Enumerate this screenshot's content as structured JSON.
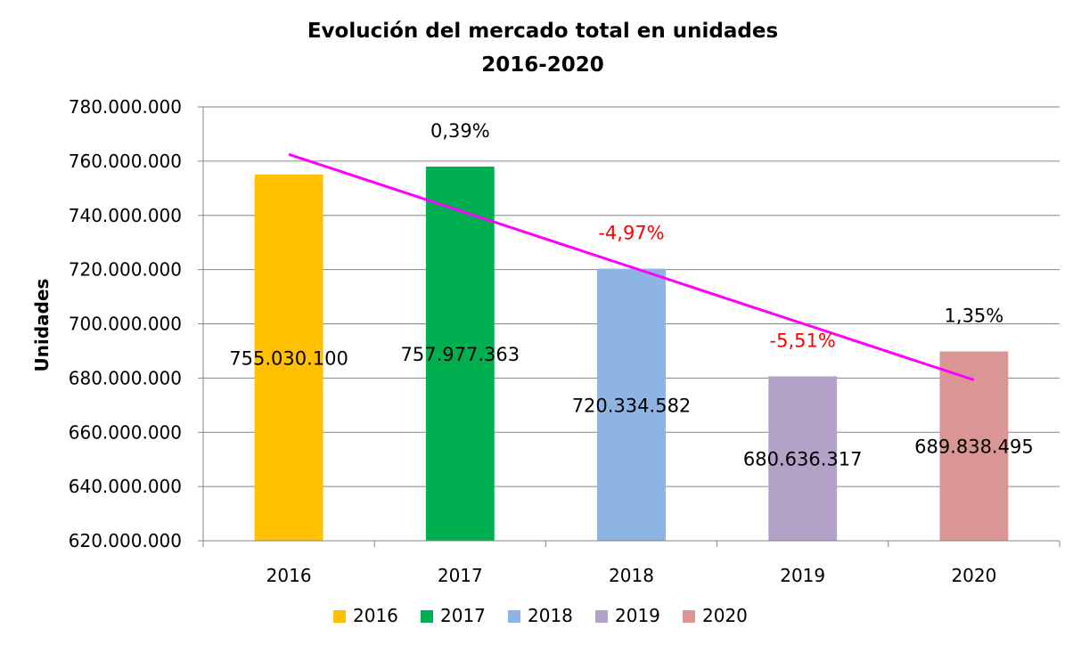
{
  "chart_data": {
    "type": "bar",
    "title_lines": [
      "Evolución del mercado total en unidades",
      "2016-2020"
    ],
    "xlabel": "",
    "ylabel": "Unidades",
    "categories": [
      "2016",
      "2017",
      "2018",
      "2019",
      "2020"
    ],
    "values": [
      755030100,
      757977363,
      720334582,
      680636317,
      689838495
    ],
    "value_labels": [
      "755.030.100",
      "757.977.363",
      "720.334.582",
      "680.636.317",
      "689.838.495"
    ],
    "colors": [
      "#FFC000",
      "#00B050",
      "#8EB4E3",
      "#B3A2C7",
      "#D99694"
    ],
    "ylim": [
      620000000,
      780000000
    ],
    "yticks": [
      620000000,
      640000000,
      660000000,
      680000000,
      700000000,
      720000000,
      740000000,
      760000000,
      780000000
    ],
    "ytick_labels": [
      "620.000.000",
      "640.000.000",
      "660.000.000",
      "680.000.000",
      "700.000.000",
      "720.000.000",
      "740.000.000",
      "760.000.000",
      "780.000.000"
    ],
    "grid": true,
    "legend": {
      "placement": "bottom",
      "entries": [
        "2016",
        "2017",
        "2018",
        "2019",
        "2020"
      ]
    },
    "annotations": [
      {
        "category": "2017",
        "text": "0,39%",
        "color": "#000000"
      },
      {
        "category": "2018",
        "text": "-4,97%",
        "color": "#FF0000"
      },
      {
        "category": "2019",
        "text": "-5,51%",
        "color": "#FF0000"
      },
      {
        "category": "2020",
        "text": "1,35%",
        "color": "#000000"
      }
    ],
    "trendline": {
      "type": "linear",
      "color": "#FF00FF",
      "start_value": 762500000,
      "end_value": 679300000
    }
  }
}
